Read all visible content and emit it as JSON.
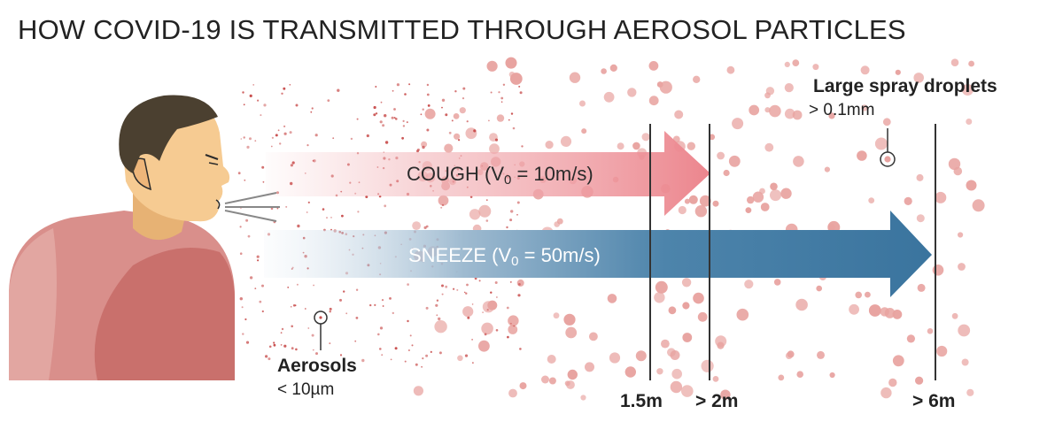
{
  "title": "HOW COVID-19 IS TRANSMITTED THROUGH AEROSOL PARTICLES",
  "cough": {
    "prefix": "COUGH (V",
    "sub": "0",
    "value": "= 10m/s)",
    "color": "#e9828b"
  },
  "sneeze": {
    "prefix": "SNEEZE (V",
    "sub": "0",
    "value": "= 50m/s)",
    "color": "#3f7aa3"
  },
  "large_droplets": {
    "label": "Large spray droplets",
    "size": "> 0.1mm"
  },
  "aerosols": {
    "label": "Aerosols",
    "size": "< 10µm"
  },
  "distances": {
    "d1": "1.5m",
    "d2": "> 2m",
    "d3": "> 6m"
  },
  "colors": {
    "droplet": "#e8a3a0",
    "aerosol": "#c9504f",
    "skin": "#f4c98e",
    "hair": "#4a3f30",
    "shirt": "#d98a86",
    "shirt_dark": "#c96f6c"
  }
}
